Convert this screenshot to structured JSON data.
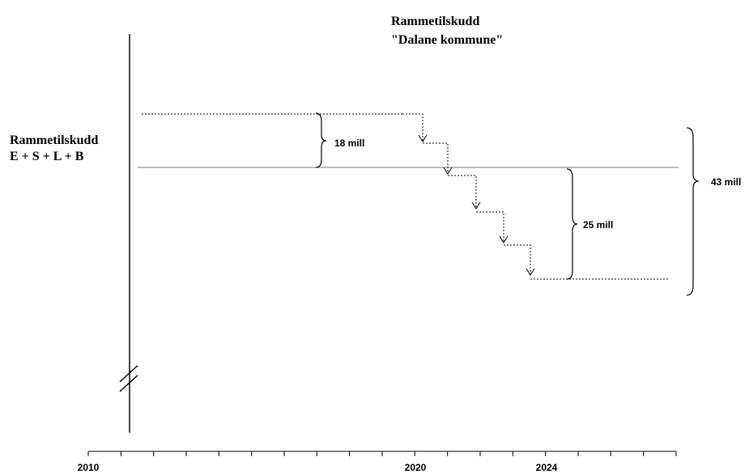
{
  "title": {
    "line1": "Rammetilskudd",
    "line2": "\"Dalane kommune\""
  },
  "left_label": {
    "line1": "Rammetilskudd",
    "line2": "E + S + L + B"
  },
  "braces": [
    {
      "label": "18 mill"
    },
    {
      "label": "25 mill"
    },
    {
      "label": "43 mill"
    }
  ],
  "timeline": {
    "labels": [
      "2010",
      "2020",
      "2024"
    ]
  }
}
